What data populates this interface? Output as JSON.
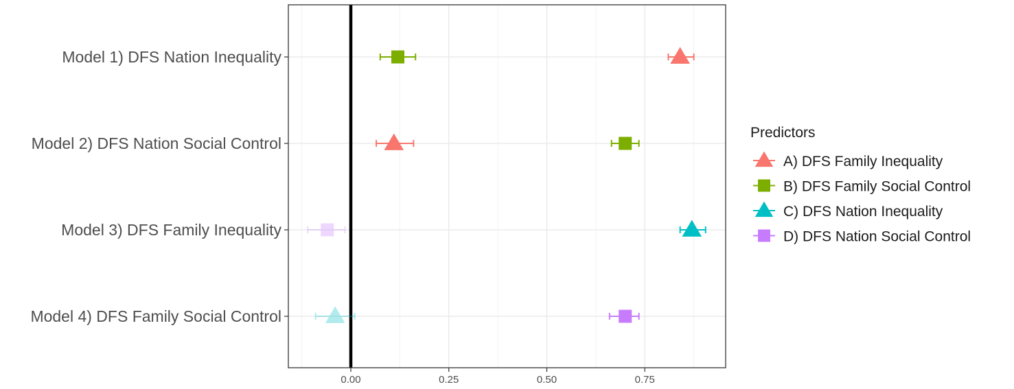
{
  "chart_data": {
    "type": "scatter",
    "title": "",
    "xlabel": "",
    "ylabel": "",
    "xlim": [
      -0.13,
      0.95
    ],
    "x_ticks": [
      0.0,
      0.25,
      0.5,
      0.75
    ],
    "x_tick_labels": [
      "0.00",
      "0.25",
      "0.50",
      "0.75"
    ],
    "reference_line_x": 0,
    "grid": true,
    "legend_position": "right",
    "categories": [
      "Model 1) DFS Nation Inequality",
      "Model 2) DFS Nation Social Control",
      "Model 3) DFS Family Inequality",
      "Model 4) DFS Family Social Control"
    ],
    "legend": {
      "title": "Predictors",
      "entries": [
        {
          "label": "A) DFS Family Inequality",
          "color": "#F8766D",
          "shape": "triangle"
        },
        {
          "label": "B) DFS Family Social Control",
          "color": "#7CAE00",
          "shape": "square"
        },
        {
          "label": "C) DFS Nation Inequality",
          "color": "#00BFC4",
          "shape": "triangle"
        },
        {
          "label": "D) DFS Nation Social Control",
          "color": "#C77CFF",
          "shape": "square"
        }
      ]
    },
    "series": [
      {
        "name": "A) DFS Family Inequality",
        "color": "#F8766D",
        "shape": "triangle",
        "points": [
          {
            "model": 0,
            "estimate": 0.84,
            "lower": 0.81,
            "upper": 0.875,
            "faded": false
          },
          {
            "model": 1,
            "estimate": 0.11,
            "lower": 0.065,
            "upper": 0.16,
            "faded": false
          }
        ]
      },
      {
        "name": "B) DFS Family Social Control",
        "color": "#7CAE00",
        "shape": "square",
        "points": [
          {
            "model": 0,
            "estimate": 0.12,
            "lower": 0.075,
            "upper": 0.165,
            "faded": false
          },
          {
            "model": 1,
            "estimate": 0.7,
            "lower": 0.665,
            "upper": 0.735,
            "faded": false
          }
        ]
      },
      {
        "name": "C) DFS Nation Inequality",
        "color": "#00BFC4",
        "shape": "triangle",
        "points": [
          {
            "model": 2,
            "estimate": 0.87,
            "lower": 0.84,
            "upper": 0.905,
            "faded": false
          },
          {
            "model": 3,
            "estimate": -0.04,
            "lower": -0.09,
            "upper": 0.01,
            "faded": true
          }
        ]
      },
      {
        "name": "D) DFS Nation Social Control",
        "color": "#C77CFF",
        "shape": "square",
        "points": [
          {
            "model": 2,
            "estimate": -0.06,
            "lower": -0.11,
            "upper": -0.015,
            "faded": true
          },
          {
            "model": 3,
            "estimate": 0.7,
            "lower": 0.66,
            "upper": 0.735,
            "faded": false
          }
        ]
      }
    ]
  }
}
